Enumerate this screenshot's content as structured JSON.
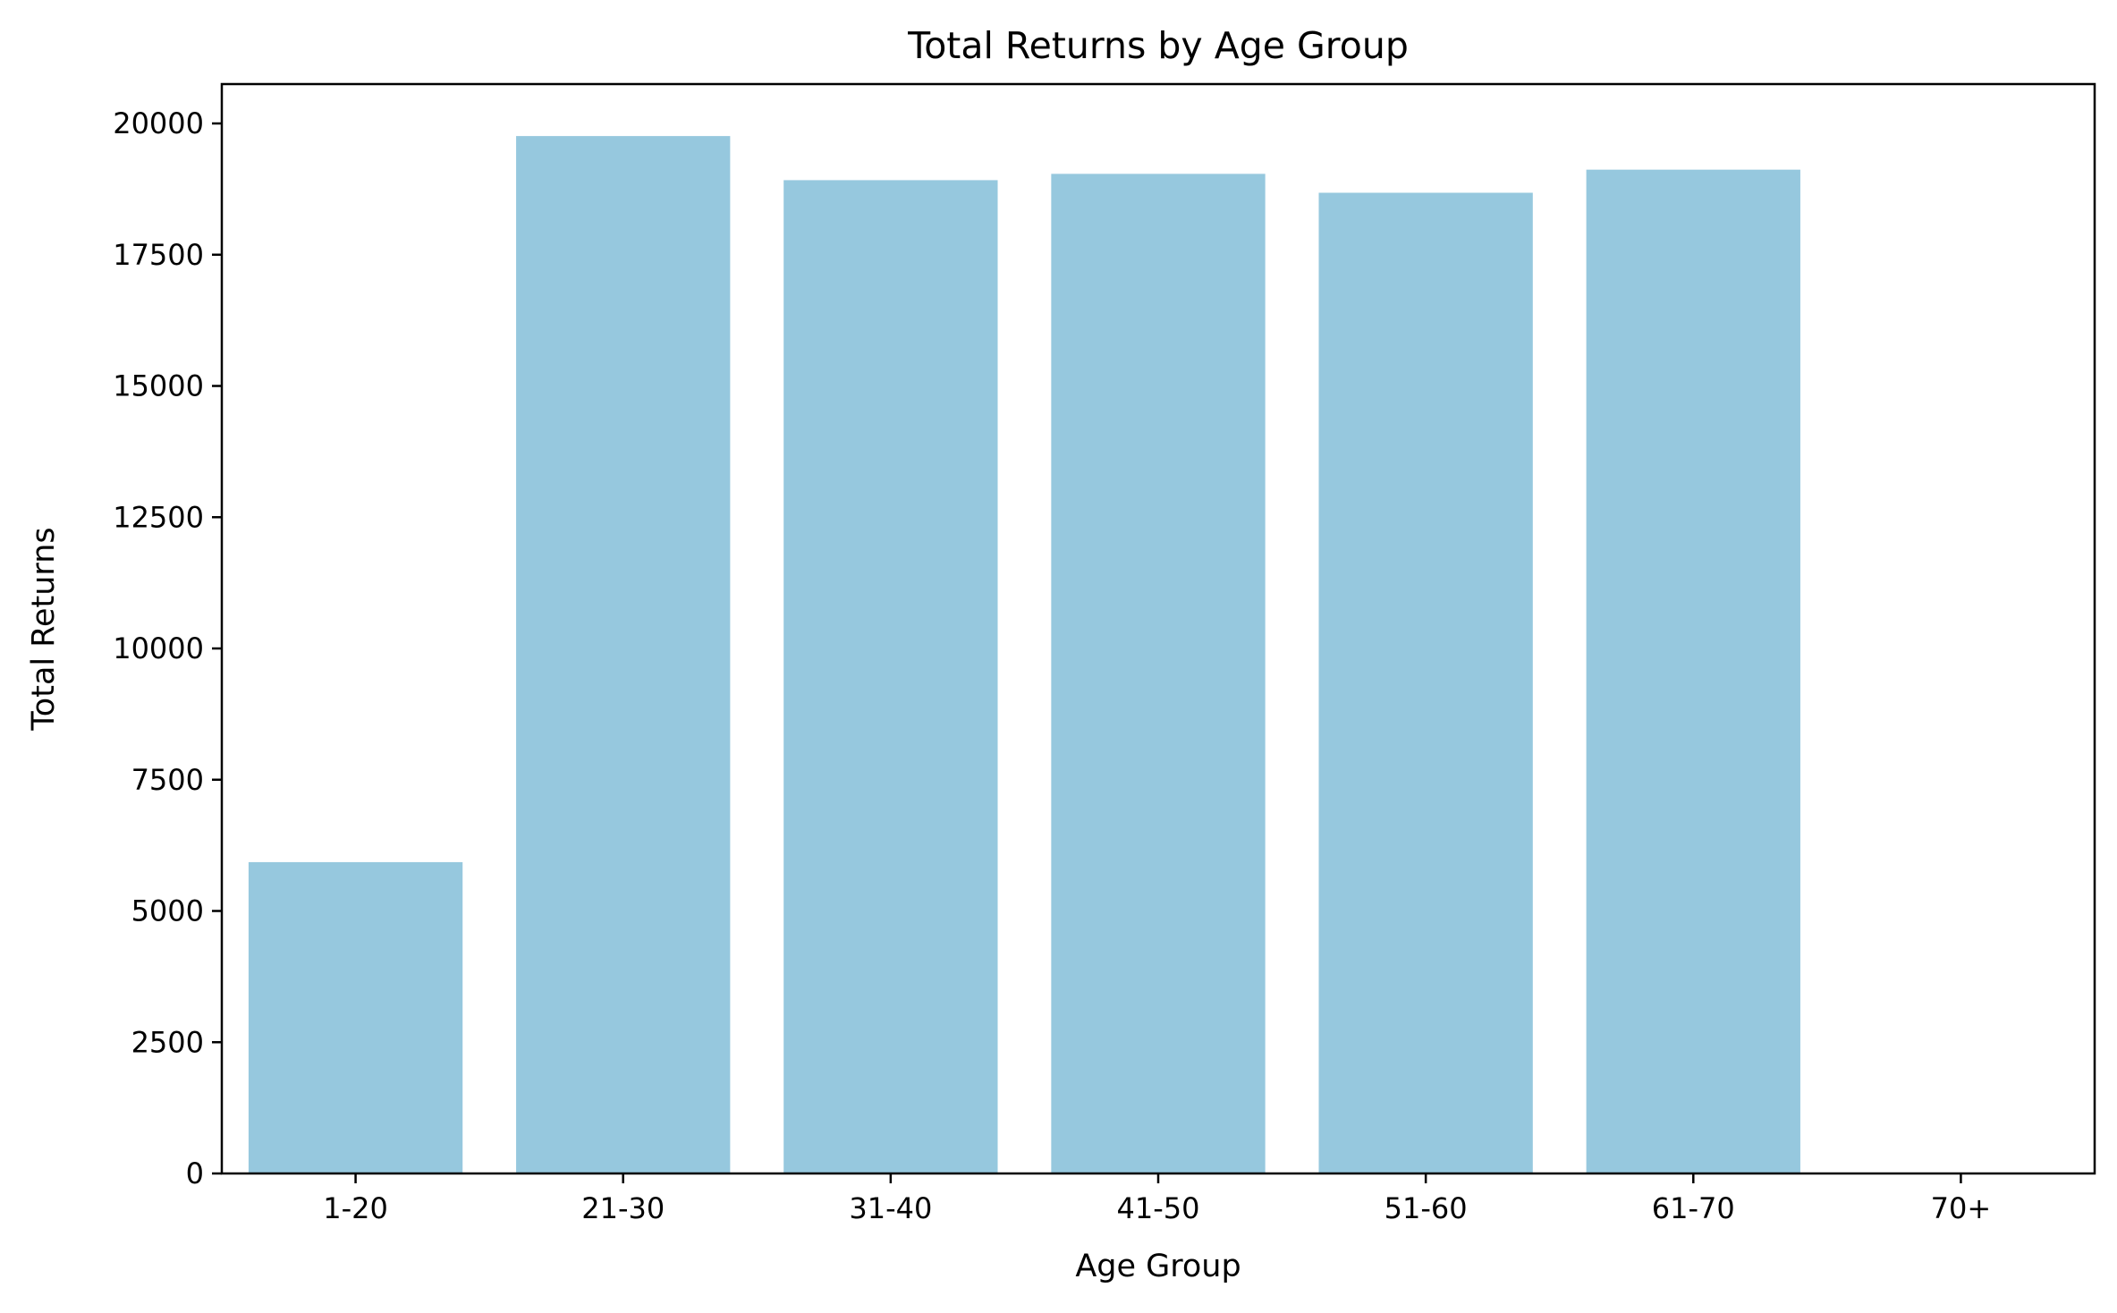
{
  "chart_data": {
    "type": "bar",
    "title": "Total Returns by Age Group",
    "xlabel": "Age Group",
    "ylabel": "Total Returns",
    "categories": [
      "1-20",
      "21-30",
      "31-40",
      "41-50",
      "51-60",
      "61-70",
      "70+"
    ],
    "values": [
      5930,
      19760,
      18920,
      19040,
      18680,
      19120,
      0
    ],
    "ylim": [
      0,
      20750
    ],
    "yticks": [
      {
        "value": 0,
        "label": "0"
      },
      {
        "value": 2500,
        "label": "2500"
      },
      {
        "value": 5000,
        "label": "5000"
      },
      {
        "value": 7500,
        "label": "7500"
      },
      {
        "value": 10000,
        "label": "10000"
      },
      {
        "value": 12500,
        "label": "12500"
      },
      {
        "value": 15000,
        "label": "15000"
      },
      {
        "value": 17500,
        "label": "17500"
      },
      {
        "value": 20000,
        "label": "20000"
      }
    ],
    "grid": false,
    "legend": "none",
    "colors": {
      "bar": "#96c8de",
      "axis": "#000000",
      "text": "#000000",
      "background": "#ffffff"
    }
  }
}
